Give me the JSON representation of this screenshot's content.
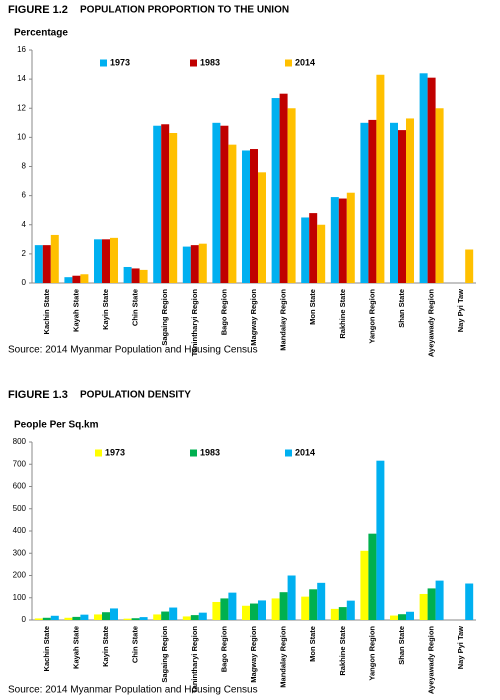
{
  "chart_data": [
    {
      "type": "bar",
      "figure": "FIGURE 1.2",
      "title": "POPULATION PROPORTION TO THE UNION",
      "y_label": "Percentage",
      "source": "Source: 2014 Myanmar Population and Housing Census",
      "categories": [
        "Kachin State",
        "Kayah State",
        "Kayin State",
        "Chin State",
        "Sagaing Region",
        "Tanintharyi Region",
        "Bago Region",
        "Magway Region",
        "Mandalay Region",
        "Mon State",
        "Rakhine State",
        "Yangon Region",
        "Shan State",
        "Ayeyawady Region",
        "Nay Pyi Taw"
      ],
      "series": [
        {
          "name": "1973",
          "color": "#00b0f0",
          "values": [
            2.6,
            0.4,
            3.0,
            1.1,
            10.8,
            2.5,
            11.0,
            9.1,
            12.7,
            4.5,
            5.9,
            11.0,
            11.0,
            14.4,
            null
          ]
        },
        {
          "name": "1983",
          "color": "#c00000",
          "values": [
            2.6,
            0.5,
            3.0,
            1.0,
            10.9,
            2.6,
            10.8,
            9.2,
            13.0,
            4.8,
            5.8,
            11.2,
            10.5,
            14.1,
            null
          ]
        },
        {
          "name": "2014",
          "color": "#ffc000",
          "values": [
            3.3,
            0.6,
            3.1,
            0.9,
            10.3,
            2.7,
            9.5,
            7.6,
            12.0,
            4.0,
            6.2,
            14.3,
            11.3,
            12.0,
            2.3
          ]
        }
      ],
      "ylim": [
        0,
        16
      ],
      "yticks": [
        0,
        2,
        4,
        6,
        8,
        10,
        12,
        14,
        16
      ],
      "grid": false,
      "legend": "top"
    },
    {
      "type": "bar",
      "figure": "FIGURE 1.3",
      "title": "POPULATION DENSITY",
      "y_label": "People Per Sq.km",
      "source": "Source: 2014 Myanmar Population and Housing Census",
      "categories": [
        "Kachin State",
        "Kayah State",
        "Kayin State",
        "Chin State",
        "Sagaing Region",
        "Tanintharyi Region",
        "Bago Region",
        "Magway Region",
        "Mandalay Region",
        "Mon State",
        "Rakhine State",
        "Yangon Region",
        "Shan State",
        "Ayeyawady Region",
        "Nay Pyi Taw"
      ],
      "series": [
        {
          "name": "1973",
          "color": "#ffff00",
          "values": [
            7,
            10,
            25,
            6,
            25,
            16,
            81,
            64,
            97,
            105,
            50,
            311,
            20,
            117,
            null
          ]
        },
        {
          "name": "1983",
          "color": "#00b050",
          "values": [
            10,
            14,
            35,
            8,
            38,
            22,
            97,
            74,
            125,
            138,
            58,
            388,
            26,
            142,
            null
          ]
        },
        {
          "name": "2014",
          "color": "#00b0f0",
          "values": [
            19,
            24,
            52,
            13,
            56,
            33,
            123,
            88,
            200,
            167,
            87,
            716,
            37,
            177,
            164
          ]
        }
      ],
      "ylim": [
        0,
        800
      ],
      "yticks": [
        0,
        100,
        200,
        300,
        400,
        500,
        600,
        700,
        800
      ],
      "grid": false,
      "legend": "top"
    }
  ]
}
